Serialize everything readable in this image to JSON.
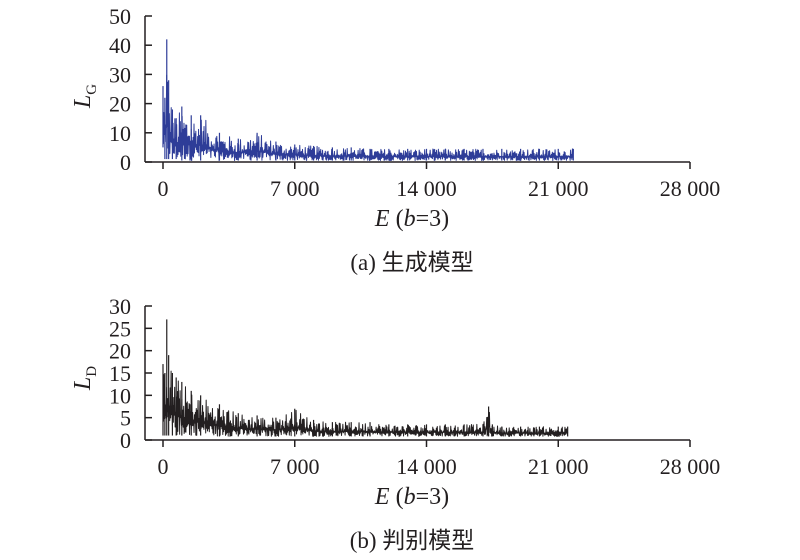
{
  "chart_data": [
    {
      "type": "line",
      "caption": "(a) 生成模型",
      "ylabel": "L",
      "ylabel_subscript": "G",
      "xlabel": "E (b=3)",
      "xlabel_var": "E",
      "xlabel_param": "b",
      "xlabel_value": "=3)",
      "xlim": [
        0,
        28000
      ],
      "ylim": [
        0,
        50
      ],
      "x_ticks": [
        0,
        7000,
        14000,
        21000,
        28000
      ],
      "x_tick_labels": [
        "0",
        "7 000",
        "14 000",
        "21 000",
        "28 000"
      ],
      "y_ticks": [
        0,
        10,
        20,
        30,
        40,
        50
      ],
      "y_tick_labels": [
        "0",
        "10",
        "20",
        "30",
        "40",
        "50"
      ],
      "color": "#2e3d98",
      "series": [
        {
          "x": [
            0,
            100,
            200,
            300,
            500,
            700,
            1000,
            1500,
            2000,
            3000,
            4000,
            5000,
            6000,
            7000,
            8000,
            9000,
            10000,
            11000,
            12000,
            13000,
            14000,
            15000,
            16000,
            17000,
            18000,
            19000,
            20000,
            21000,
            21800
          ],
          "max": [
            26,
            22,
            42,
            28,
            18,
            15,
            19,
            16,
            16,
            10,
            8,
            10,
            7,
            6,
            5.5,
            5,
            5,
            4.5,
            4.5,
            4.5,
            4.5,
            4.5,
            4.5,
            4.5,
            4.5,
            4.5,
            4.5,
            4.5,
            4.5
          ],
          "min": [
            5,
            1,
            1,
            1,
            1,
            1,
            0.5,
            0.5,
            0.5,
            0.5,
            0.5,
            0.5,
            0.5,
            0.5,
            0.5,
            0.5,
            0.5,
            0.5,
            0.5,
            0.5,
            0.5,
            0.5,
            0.5,
            0.5,
            0.5,
            0.5,
            0.5,
            0.5,
            0.5
          ]
        }
      ]
    },
    {
      "type": "line",
      "caption": "(b) 判别模型",
      "ylabel": "L",
      "ylabel_subscript": "D",
      "xlabel": "E (b=3)",
      "xlabel_var": "E",
      "xlabel_param": "b",
      "xlabel_value": "=3)",
      "xlim": [
        0,
        28000
      ],
      "ylim": [
        0,
        30
      ],
      "x_ticks": [
        0,
        7000,
        14000,
        21000,
        28000
      ],
      "x_tick_labels": [
        "0",
        "7 000",
        "14 000",
        "21 000",
        "28 000"
      ],
      "y_ticks": [
        0,
        5,
        10,
        15,
        20,
        25,
        30
      ],
      "y_tick_labels": [
        "0",
        "5",
        "10",
        "15",
        "20",
        "25",
        "30"
      ],
      "color": "#231f20",
      "series": [
        {
          "x": [
            0,
            100,
            200,
            300,
            500,
            700,
            1000,
            1500,
            2000,
            3000,
            4000,
            5000,
            6000,
            7000,
            8000,
            9000,
            10000,
            11000,
            12000,
            13000,
            14000,
            15000,
            16000,
            17000,
            17300,
            17500,
            18000,
            19000,
            20000,
            21000,
            21500
          ],
          "max": [
            17,
            15,
            27,
            19,
            15,
            14,
            13,
            11,
            10,
            8,
            6,
            5.5,
            5,
            7,
            4.5,
            4,
            4,
            4,
            3.5,
            3.5,
            3.5,
            3.5,
            3.5,
            3.5,
            7.5,
            3.5,
            3,
            3,
            3,
            3,
            3
          ],
          "min": [
            1,
            1,
            1,
            1,
            1,
            1,
            1,
            1,
            1,
            0.8,
            0.8,
            0.8,
            0.8,
            0.8,
            0.8,
            0.8,
            0.8,
            0.8,
            0.8,
            0.8,
            0.8,
            0.8,
            0.8,
            0.8,
            0.8,
            0.8,
            0.8,
            0.8,
            0.8,
            0.8,
            0.8
          ]
        }
      ]
    }
  ]
}
